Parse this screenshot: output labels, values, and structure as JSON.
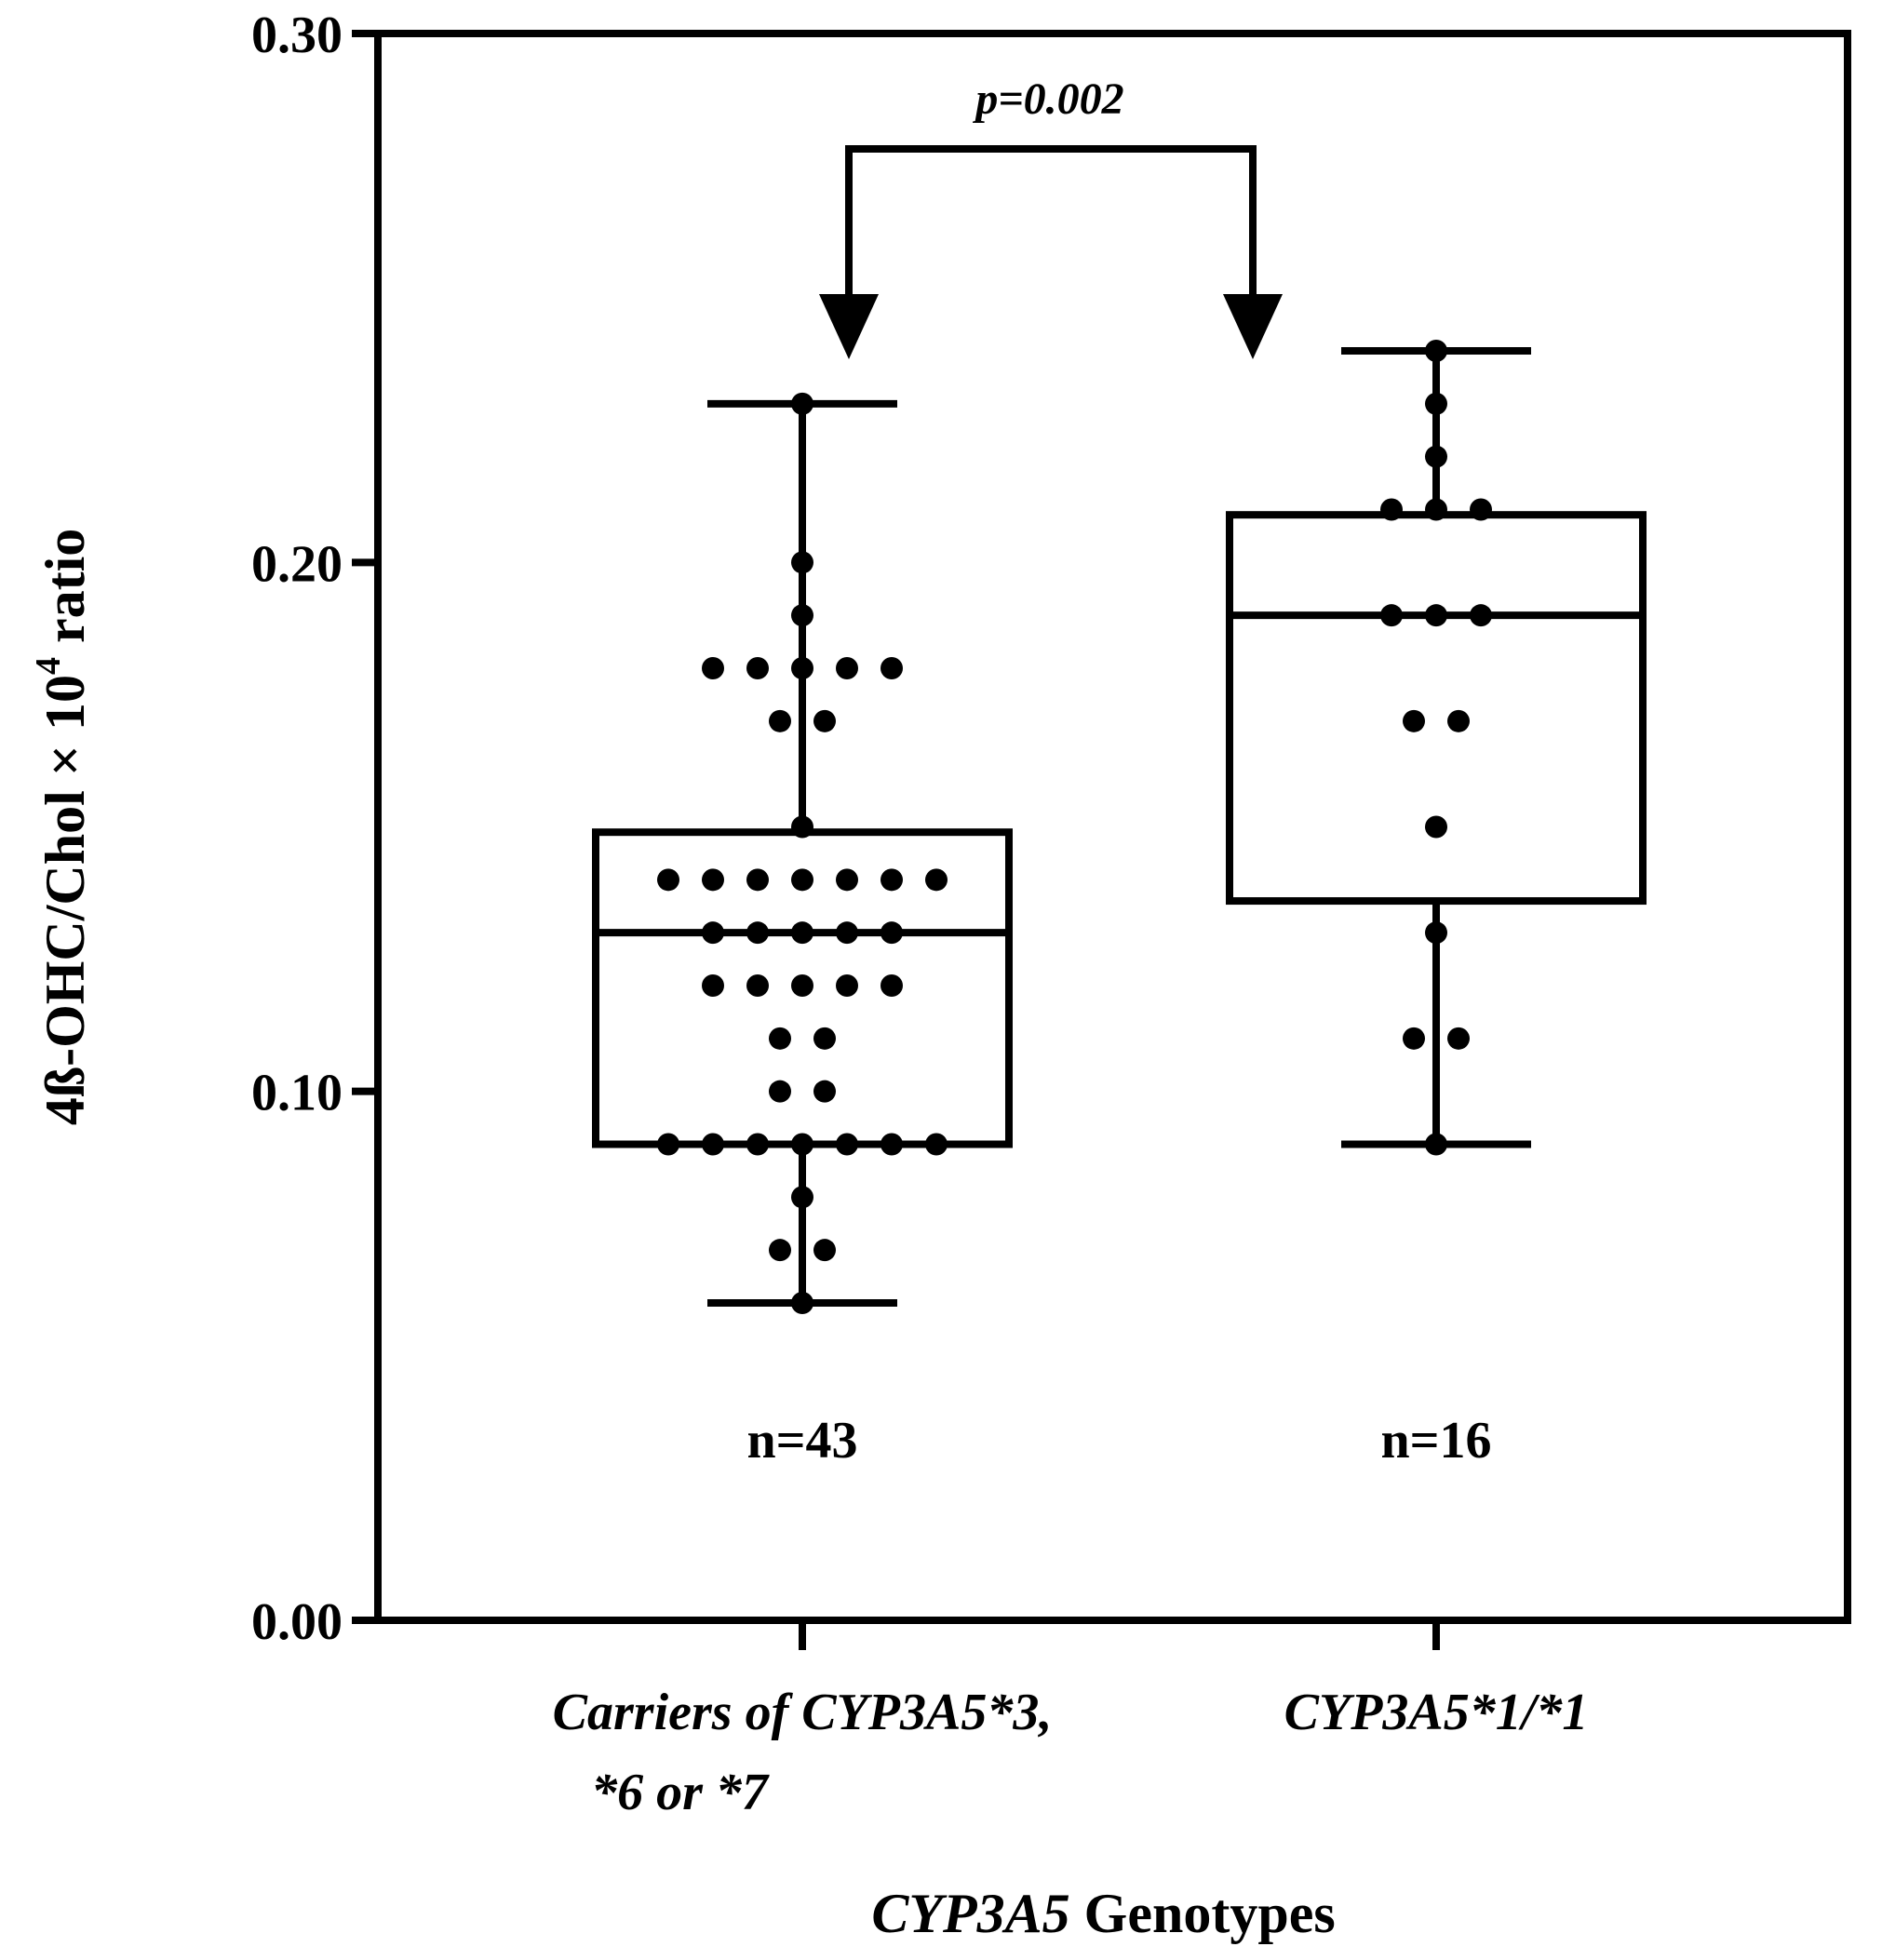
{
  "chart_data": {
    "type": "box",
    "ylabel": {
      "main": "4ß-OHC/Chol × 10",
      "exponent": "4",
      "suffix": " ratio"
    },
    "xlabel": {
      "italic": "CYP3A5",
      "rest": " Genotypes"
    },
    "ylim": [
      0,
      0.3
    ],
    "yticks": [
      "0.00",
      "0.10",
      "0.20",
      "0.30"
    ],
    "ytick_values": [
      0,
      0.1,
      0.2,
      0.3
    ],
    "grid": false,
    "groups": [
      {
        "label_lines": [
          "Carriers of CYP3A5*3,",
          "*6 or *7"
        ],
        "n_label": "n=43",
        "min": 0.06,
        "q1": 0.09,
        "median": 0.13,
        "q3": 0.149,
        "max": 0.23,
        "points": [
          0.06,
          0.07,
          0.07,
          0.08,
          0.09,
          0.09,
          0.09,
          0.09,
          0.09,
          0.09,
          0.09,
          0.1,
          0.1,
          0.11,
          0.11,
          0.12,
          0.12,
          0.12,
          0.12,
          0.12,
          0.13,
          0.13,
          0.13,
          0.13,
          0.13,
          0.14,
          0.14,
          0.14,
          0.14,
          0.14,
          0.14,
          0.14,
          0.15,
          0.17,
          0.17,
          0.18,
          0.18,
          0.18,
          0.18,
          0.18,
          0.19,
          0.2,
          0.23
        ]
      },
      {
        "label_lines": [
          "CYP3A5*1/*1"
        ],
        "n_label": "n=16",
        "min": 0.09,
        "q1": 0.136,
        "median": 0.19,
        "q3": 0.209,
        "max": 0.24,
        "points": [
          0.09,
          0.11,
          0.11,
          0.13,
          0.15,
          0.17,
          0.17,
          0.19,
          0.19,
          0.19,
          0.21,
          0.21,
          0.21,
          0.22,
          0.23,
          0.24
        ]
      }
    ],
    "comparison": {
      "from_group": 0,
      "to_group": 1,
      "label": "p=0.002"
    }
  }
}
